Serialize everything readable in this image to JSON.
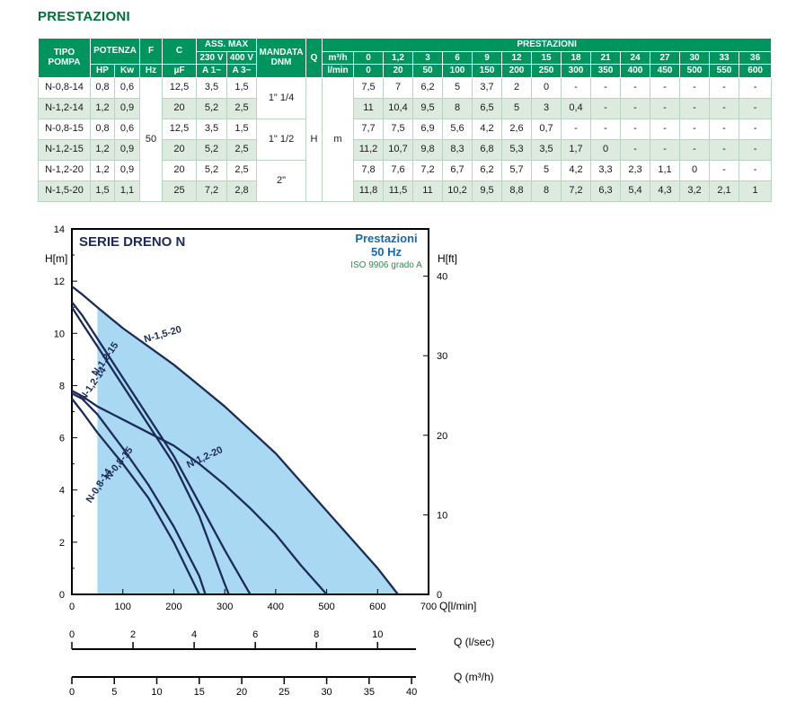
{
  "title": "PRESTAZIONI",
  "colors": {
    "header_green": "#00945f",
    "title_green": "#00713a",
    "stripe_green": "#dcebde",
    "cell_border": "#b9d4c1",
    "curve_navy": "#1d2b5a",
    "band_blue": "#a8d8f2",
    "subtitle_blue": "#1668b3",
    "iso_green": "#2e8b4f"
  },
  "table": {
    "header": {
      "tipo_pompa": "TIPO POMPA",
      "potenza": "POTENZA",
      "hp": "HP",
      "kw": "Kw",
      "f": "F",
      "hz": "Hz",
      "c": "C",
      "uf": "µF",
      "ass_max": "ASS. MAX",
      "v230": "230 V",
      "v400": "400 V",
      "a1": "A 1~",
      "a3": "A 3~",
      "mandata": "MANDATA DNM",
      "q": "Q",
      "prestazioni": "PRESTAZIONI",
      "m3h": "m³/h",
      "lmin": "l/min",
      "m3h_values": [
        "0",
        "1,2",
        "3",
        "6",
        "9",
        "12",
        "15",
        "18",
        "21",
        "24",
        "27",
        "30",
        "33",
        "36"
      ],
      "lmin_values": [
        "0",
        "20",
        "50",
        "100",
        "150",
        "200",
        "250",
        "300",
        "350",
        "400",
        "450",
        "500",
        "550",
        "600"
      ]
    },
    "shared": {
      "hz": "50",
      "q": "H",
      "unit": "m"
    },
    "mandata_groups": [
      "1\" 1/4",
      "1\" 1/2",
      "2\""
    ],
    "rows": [
      {
        "tipo": "N-0,8-14",
        "hp": "0,8",
        "kw": "0,6",
        "uf": "12,5",
        "a1": "3,5",
        "a3": "1,5",
        "values": [
          "7,5",
          "7",
          "6,2",
          "5",
          "3,7",
          "2",
          "0",
          "-",
          "-",
          "-",
          "-",
          "-",
          "-",
          "-"
        ]
      },
      {
        "tipo": "N-1,2-14",
        "hp": "1,2",
        "kw": "0,9",
        "uf": "20",
        "a1": "5,2",
        "a3": "2,5",
        "values": [
          "11",
          "10,4",
          "9,5",
          "8",
          "6,5",
          "5",
          "3",
          "0,4",
          "-",
          "-",
          "-",
          "-",
          "-",
          "-"
        ]
      },
      {
        "tipo": "N-0,8-15",
        "hp": "0,8",
        "kw": "0,6",
        "uf": "12,5",
        "a1": "3,5",
        "a3": "1,5",
        "values": [
          "7,7",
          "7,5",
          "6,9",
          "5,6",
          "4,2",
          "2,6",
          "0,7",
          "-",
          "-",
          "-",
          "-",
          "-",
          "-",
          "-"
        ]
      },
      {
        "tipo": "N-1,2-15",
        "hp": "1,2",
        "kw": "0,9",
        "uf": "20",
        "a1": "5,2",
        "a3": "2,5",
        "values": [
          "11,2",
          "10,7",
          "9,8",
          "8,3",
          "6,8",
          "5,3",
          "3,5",
          "1,7",
          "0",
          "-",
          "-",
          "-",
          "-",
          "-"
        ]
      },
      {
        "tipo": "N-1,2-20",
        "hp": "1,2",
        "kw": "0,9",
        "uf": "20",
        "a1": "5,2",
        "a3": "2,5",
        "values": [
          "7,8",
          "7,6",
          "7,2",
          "6,7",
          "6,2",
          "5,7",
          "5",
          "4,2",
          "3,3",
          "2,3",
          "1,1",
          "0",
          "-",
          "-"
        ]
      },
      {
        "tipo": "N-1,5-20",
        "hp": "1,5",
        "kw": "1,1",
        "uf": "25",
        "a1": "7,2",
        "a3": "2,8",
        "values": [
          "11,8",
          "11,5",
          "11",
          "10,2",
          "9,5",
          "8,8",
          "8",
          "7,2",
          "6,3",
          "5,4",
          "4,3",
          "3,2",
          "2,1",
          "1"
        ]
      }
    ]
  },
  "chart_data": {
    "type": "line",
    "title": "SERIE DRENO N",
    "subtitle": [
      "Prestazioni",
      "50 Hz"
    ],
    "standard": "ISO 9906 grado A",
    "x_axis": {
      "label": "Q[l/min]",
      "min": 0,
      "max": 700,
      "tick_step": 100
    },
    "y_axis_left": {
      "label": "H[m]",
      "min": 0,
      "max": 14,
      "tick_step": 2
    },
    "y_axis_right": {
      "label": "H[ft]",
      "ticks": [
        0,
        10,
        20,
        30,
        40
      ],
      "m_per_ft": 0.3048
    },
    "secondary_axes": [
      {
        "label": "Q (l/sec)",
        "ticks": [
          0,
          2,
          4,
          6,
          8,
          10
        ],
        "lmin_per_unit": 60
      },
      {
        "label": "Q (m³/h)",
        "ticks": [
          0,
          5,
          10,
          15,
          20,
          25,
          30,
          35,
          40
        ],
        "lmin_per_unit": 16.6667
      }
    ],
    "envelope": {
      "x_start_lmin": 50,
      "bounded_by": "N-1,5-20"
    },
    "series": [
      {
        "name": "N-0,8-14",
        "x_lmin": [
          0,
          20,
          50,
          100,
          150,
          200,
          250
        ],
        "h_m": [
          7.5,
          7,
          6.2,
          5,
          3.7,
          2,
          0
        ],
        "label": {
          "x_lmin": 58,
          "h_m": 4.1,
          "angle_deg": -57
        }
      },
      {
        "name": "N-1,2-14",
        "x_lmin": [
          0,
          20,
          50,
          100,
          150,
          200,
          250,
          300,
          308
        ],
        "h_m": [
          11,
          10.4,
          9.5,
          8,
          6.5,
          5,
          3,
          0.4,
          0
        ],
        "label": {
          "x_lmin": 46,
          "h_m": 8.0,
          "angle_deg": -55
        }
      },
      {
        "name": "N-0,8-15",
        "x_lmin": [
          0,
          20,
          50,
          100,
          150,
          200,
          250,
          262
        ],
        "h_m": [
          7.7,
          7.5,
          6.9,
          5.6,
          4.2,
          2.6,
          0.7,
          0
        ],
        "label": {
          "x_lmin": 97,
          "h_m": 4.95,
          "angle_deg": -52
        }
      },
      {
        "name": "N-1,2-15",
        "x_lmin": [
          0,
          20,
          50,
          100,
          150,
          200,
          250,
          300,
          350
        ],
        "h_m": [
          11.2,
          10.7,
          9.8,
          8.3,
          6.8,
          5.3,
          3.5,
          1.7,
          0
        ],
        "label": {
          "x_lmin": 70,
          "h_m": 8.95,
          "angle_deg": -55
        }
      },
      {
        "name": "N-1,2-20",
        "x_lmin": [
          0,
          20,
          50,
          100,
          150,
          200,
          250,
          300,
          350,
          400,
          450,
          500
        ],
        "h_m": [
          7.8,
          7.6,
          7.2,
          6.7,
          6.2,
          5.7,
          5,
          4.2,
          3.3,
          2.3,
          1.1,
          0
        ],
        "label": {
          "x_lmin": 263,
          "h_m": 5.15,
          "angle_deg": -25
        }
      },
      {
        "name": "N-1,5-20",
        "x_lmin": [
          0,
          20,
          50,
          100,
          150,
          200,
          250,
          300,
          350,
          400,
          450,
          500,
          550,
          600,
          640
        ],
        "h_m": [
          11.8,
          11.5,
          11,
          10.2,
          9.5,
          8.8,
          8,
          7.2,
          6.3,
          5.4,
          4.3,
          3.2,
          2.1,
          1,
          0
        ],
        "label": {
          "x_lmin": 180,
          "h_m": 9.85,
          "angle_deg": -16
        }
      }
    ]
  }
}
